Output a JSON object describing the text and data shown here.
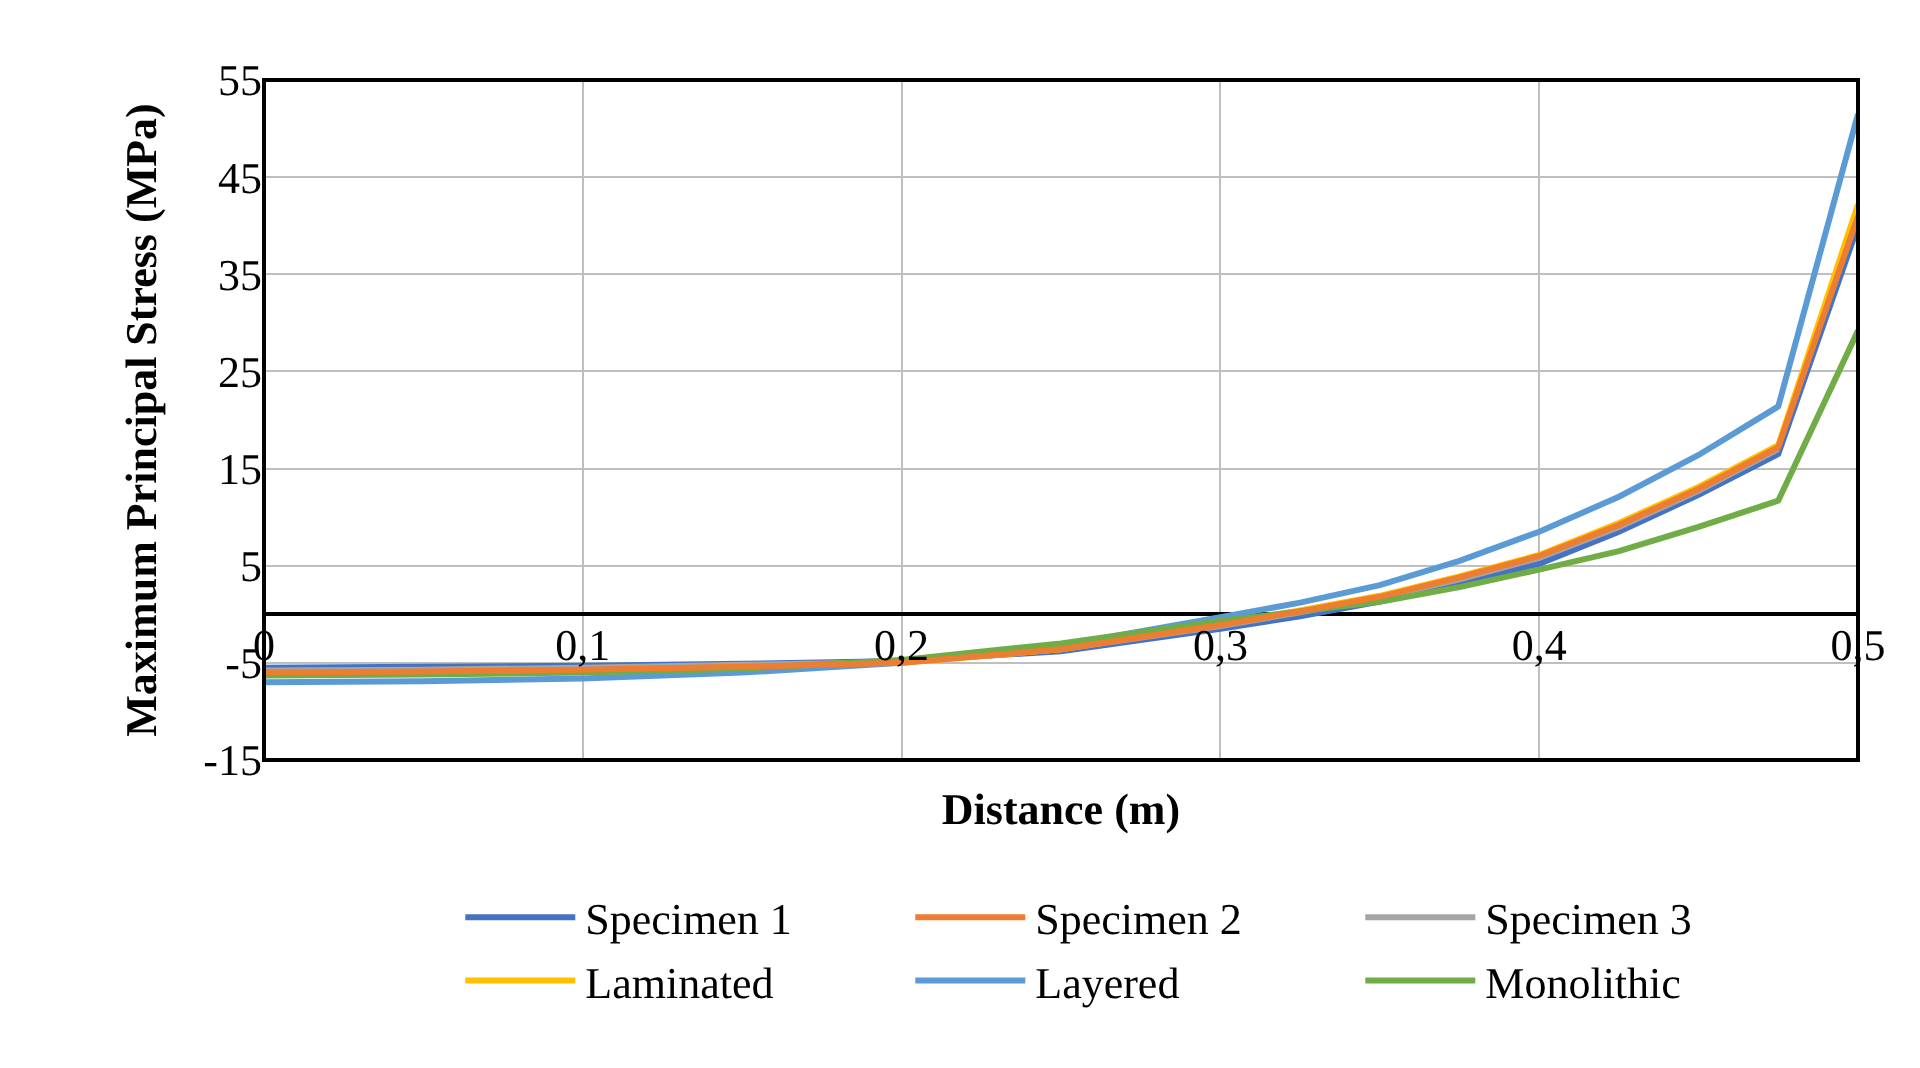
{
  "chart_data": {
    "type": "line",
    "xlabel": "Distance (m)",
    "ylabel": "Maximum Principal Stress (MPa)",
    "x": [
      0,
      0.05,
      0.1,
      0.15,
      0.2,
      0.25,
      0.3,
      0.325,
      0.35,
      0.375,
      0.4,
      0.425,
      0.45,
      0.475,
      0.5
    ],
    "series": [
      {
        "name": "Specimen 1",
        "color": "#4472c4",
        "values": [
          -5.5,
          -5.4,
          -5.3,
          -5.1,
          -4.8,
          -3.8,
          -1.5,
          -0.2,
          1.3,
          3.2,
          5.2,
          8.5,
          12.3,
          16.5,
          40
        ]
      },
      {
        "name": "Specimen 2",
        "color": "#ed7d31",
        "values": [
          -6,
          -5.9,
          -5.7,
          -5.4,
          -5,
          -3.6,
          -1.1,
          0.3,
          1.8,
          3.8,
          6,
          9.2,
          12.9,
          17.2,
          41
        ]
      },
      {
        "name": "Specimen 3",
        "color": "#a5a5a5",
        "values": [
          -5.8,
          -5.7,
          -5.5,
          -5.2,
          -4.9,
          -3.6,
          -1.2,
          0.2,
          1.7,
          3.6,
          5.8,
          9,
          12.7,
          17,
          null
        ]
      },
      {
        "name": "Laminated",
        "color": "#ffc000",
        "values": [
          null,
          null,
          null,
          -5.5,
          -5,
          -3.6,
          -1,
          0.4,
          1.9,
          3.9,
          6.1,
          9.4,
          13.1,
          17.4,
          42.2
        ]
      },
      {
        "name": "Layered",
        "color": "#5b9bd5",
        "values": [
          -7,
          -6.9,
          -6.6,
          -6,
          -5,
          -3.2,
          -0.3,
          1.2,
          3,
          5.5,
          8.5,
          12.1,
          16.4,
          21.4,
          51.5
        ]
      },
      {
        "name": "Monolithic",
        "color": "#70ad47",
        "values": [
          -6.3,
          -6.2,
          -6,
          -5.6,
          -4.7,
          -3,
          -0.7,
          0.3,
          1.3,
          2.8,
          4.6,
          6.5,
          9,
          11.7,
          29.2
        ]
      }
    ],
    "xlim": [
      0,
      0.5
    ],
    "xticks": [
      0,
      {
        "value": 0.1,
        "label": "0,1"
      },
      {
        "value": 0.2,
        "label": "0,2"
      },
      {
        "value": 0.3,
        "label": "0,3"
      },
      {
        "value": 0.4,
        "label": "0,4"
      },
      {
        "value": 0.5,
        "label": "0,5"
      }
    ],
    "ylim": [
      -15,
      55
    ],
    "yticks": [
      -15,
      -5,
      5,
      15,
      25,
      35,
      45,
      55
    ],
    "grid": true,
    "legend": "bottom",
    "marker": "none",
    "line_style": "solid"
  }
}
